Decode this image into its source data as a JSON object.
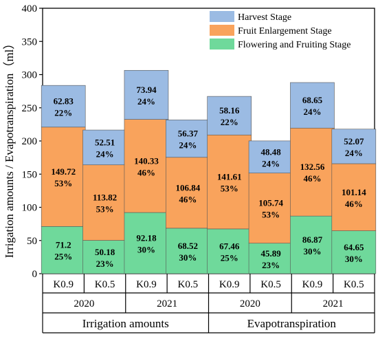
{
  "chart_data": {
    "type": "bar",
    "stacked": true,
    "ylabel": "Irrigation amounts / Evapotranspiration（ml）",
    "ylim": [
      0,
      400
    ],
    "yticks": [
      0,
      50,
      100,
      150,
      200,
      250,
      300,
      350,
      400
    ],
    "categories": [
      "K0.9",
      "K0.5",
      "K0.9",
      "K0.5",
      "K0.9",
      "K0.5",
      "K0.9",
      "K0.5"
    ],
    "year_groups": [
      "2020",
      "2021",
      "2020",
      "2021"
    ],
    "main_groups": [
      "Irrigation amounts",
      "Evapotranspiration"
    ],
    "legend_position": "top-right",
    "series": [
      {
        "name": "Flowering and Fruiting Stage",
        "color": "#6fd99b",
        "values": [
          71.2,
          50.18,
          92.18,
          68.52,
          67.46,
          45.89,
          86.87,
          64.65
        ],
        "percents": [
          "25%",
          "23%",
          "30%",
          "30%",
          "25%",
          "23%",
          "30%",
          "30%"
        ]
      },
      {
        "name": "Fruit Enlargement Stage",
        "color": "#f9a35c",
        "values": [
          149.72,
          113.82,
          140.33,
          106.84,
          141.61,
          105.74,
          132.56,
          101.14
        ],
        "percents": [
          "53%",
          "53%",
          "46%",
          "46%",
          "53%",
          "53%",
          "46%",
          "46%"
        ]
      },
      {
        "name": "Harvest Stage",
        "color": "#9bbbe3",
        "values": [
          62.83,
          52.51,
          73.94,
          56.37,
          58.16,
          48.48,
          68.65,
          52.07
        ],
        "percents": [
          "22%",
          "24%",
          "24%",
          "24%",
          "22%",
          "24%",
          "24%",
          "24%"
        ]
      }
    ],
    "legend_order": [
      "Harvest Stage",
      "Fruit Enlargement Stage",
      "Flowering and Fruiting Stage"
    ]
  }
}
